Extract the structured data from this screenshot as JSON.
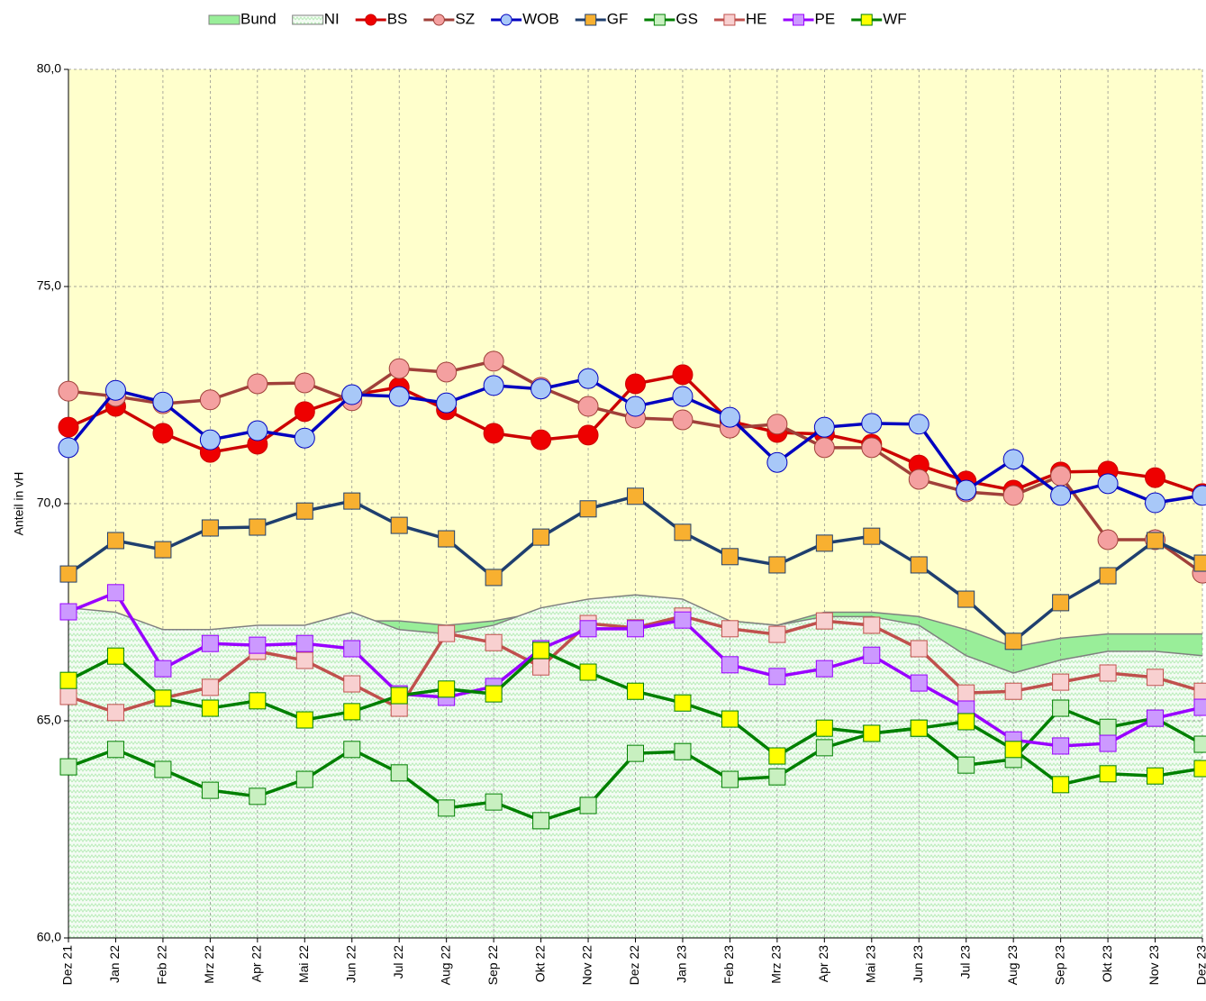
{
  "chart_data": {
    "type": "line",
    "y_label": "Anteil in vH",
    "categories": [
      "Dez 21",
      "Jan 22",
      "Feb 22",
      "Mrz 22",
      "Apr 22",
      "Mai 22",
      "Jun 22",
      "Jul 22",
      "Aug 22",
      "Sep 22",
      "Okt 22",
      "Nov 22",
      "Dez 22",
      "Jan 23",
      "Feb 23",
      "Mrz 23",
      "Apr 23",
      "Mai 23",
      "Jun 23",
      "Jul 23",
      "Aug 23",
      "Sep 23",
      "Okt 23",
      "Nov 23",
      "Dez 23"
    ],
    "ylim": [
      60,
      80
    ],
    "yticks": [
      {
        "value": 60,
        "label": "60,0"
      },
      {
        "value": 65,
        "label": "65,0"
      },
      {
        "value": 70,
        "label": "70,0"
      },
      {
        "value": 75,
        "label": "75,0"
      },
      {
        "value": 80,
        "label": "80,0"
      }
    ],
    "grid": true,
    "plot_background": "#ffffcc",
    "legend": "top",
    "series": [
      {
        "name": "Bund",
        "kind": "area",
        "color": "#99ee99",
        "line_color": "#808080",
        "values": [
          67.4,
          67.3,
          67.0,
          67.0,
          67.1,
          67.1,
          67.3,
          67.3,
          67.2,
          67.3,
          67.5,
          67.7,
          67.8,
          67.7,
          67.3,
          67.2,
          67.5,
          67.5,
          67.4,
          67.1,
          66.7,
          66.9,
          67.0,
          67.0,
          67.0
        ]
      },
      {
        "name": "NI",
        "kind": "hatched-area",
        "color": "#b8ecb8",
        "line_color": "#808080",
        "values": [
          67.6,
          67.5,
          67.1,
          67.1,
          67.2,
          67.2,
          67.5,
          67.1,
          67.0,
          67.2,
          67.6,
          67.8,
          67.9,
          67.8,
          67.3,
          67.2,
          67.4,
          67.4,
          67.2,
          66.5,
          66.1,
          66.4,
          66.6,
          66.6,
          66.5
        ]
      },
      {
        "name": "BS",
        "kind": "line",
        "marker": "circle",
        "color": "#cc0000",
        "marker_color": "#ee0000",
        "values": [
          71.76,
          72.24,
          71.62,
          71.18,
          71.37,
          72.12,
          72.5,
          72.68,
          72.16,
          71.62,
          71.47,
          71.58,
          72.76,
          72.97,
          71.9,
          71.64,
          71.6,
          71.37,
          70.89,
          70.52,
          70.31,
          70.73,
          70.75,
          70.6,
          70.23
        ]
      },
      {
        "name": "SZ",
        "kind": "line",
        "marker": "circle",
        "color": "#a0403a",
        "marker_color": "#f4a0a0",
        "values": [
          72.59,
          72.47,
          72.3,
          72.39,
          72.76,
          72.78,
          72.37,
          73.11,
          73.03,
          73.28,
          72.68,
          72.24,
          71.97,
          71.93,
          71.74,
          71.83,
          71.29,
          71.29,
          70.56,
          70.27,
          70.19,
          70.64,
          69.17,
          69.17,
          68.4
        ]
      },
      {
        "name": "WOB",
        "kind": "line",
        "marker": "circle",
        "color": "#0000c0",
        "marker_color": "#a8c8f8",
        "values": [
          71.29,
          72.61,
          72.34,
          71.47,
          71.68,
          71.51,
          72.51,
          72.47,
          72.32,
          72.72,
          72.64,
          72.88,
          72.24,
          72.47,
          71.99,
          70.95,
          71.76,
          71.85,
          71.83,
          70.31,
          71.02,
          70.19,
          70.46,
          70.02,
          70.19
        ]
      },
      {
        "name": "GF",
        "kind": "line",
        "marker": "square",
        "color": "#1f3f6f",
        "marker_color": "#f8b030",
        "values": [
          68.38,
          69.15,
          68.94,
          69.44,
          69.46,
          69.83,
          70.06,
          69.5,
          69.19,
          68.3,
          69.23,
          69.88,
          70.17,
          69.34,
          68.78,
          68.59,
          69.09,
          69.25,
          68.59,
          67.8,
          66.83,
          67.72,
          68.34,
          69.15,
          68.63
        ]
      },
      {
        "name": "GS",
        "kind": "line",
        "marker": "square",
        "color": "#008000",
        "marker_color": "#c8f0c0",
        "values": [
          63.94,
          64.34,
          63.88,
          63.4,
          63.26,
          63.65,
          64.34,
          63.8,
          62.99,
          63.13,
          62.7,
          63.05,
          64.25,
          64.29,
          63.65,
          63.71,
          64.38,
          64.71,
          64.83,
          63.98,
          64.11,
          65.29,
          64.85,
          65.06,
          64.46
        ]
      },
      {
        "name": "HE",
        "kind": "line",
        "marker": "square",
        "color": "#c0504d",
        "marker_color": "#f8d0d0",
        "values": [
          65.56,
          65.19,
          65.52,
          65.77,
          66.6,
          66.39,
          65.85,
          65.29,
          67.01,
          66.8,
          66.24,
          67.24,
          67.14,
          67.41,
          67.12,
          66.99,
          67.3,
          67.2,
          66.66,
          65.64,
          65.68,
          65.89,
          66.1,
          66.0,
          65.68
        ]
      },
      {
        "name": "PE",
        "kind": "line",
        "marker": "square",
        "color": "#9900ff",
        "marker_color": "#cc99ff",
        "values": [
          67.51,
          67.95,
          66.2,
          66.78,
          66.74,
          66.78,
          66.66,
          65.62,
          65.54,
          65.79,
          66.66,
          67.12,
          67.12,
          67.32,
          66.29,
          66.02,
          66.2,
          66.51,
          65.87,
          65.27,
          64.56,
          64.42,
          64.48,
          65.06,
          65.31
        ]
      },
      {
        "name": "WF",
        "kind": "line",
        "marker": "square",
        "color": "#008000",
        "marker_color": "#ffff00",
        "values": [
          65.93,
          66.49,
          65.52,
          65.29,
          65.46,
          65.02,
          65.21,
          65.58,
          65.73,
          65.62,
          66.62,
          66.12,
          65.68,
          65.41,
          65.04,
          64.19,
          64.83,
          64.71,
          64.83,
          64.98,
          64.34,
          63.53,
          63.78,
          63.73,
          63.9
        ]
      }
    ]
  }
}
